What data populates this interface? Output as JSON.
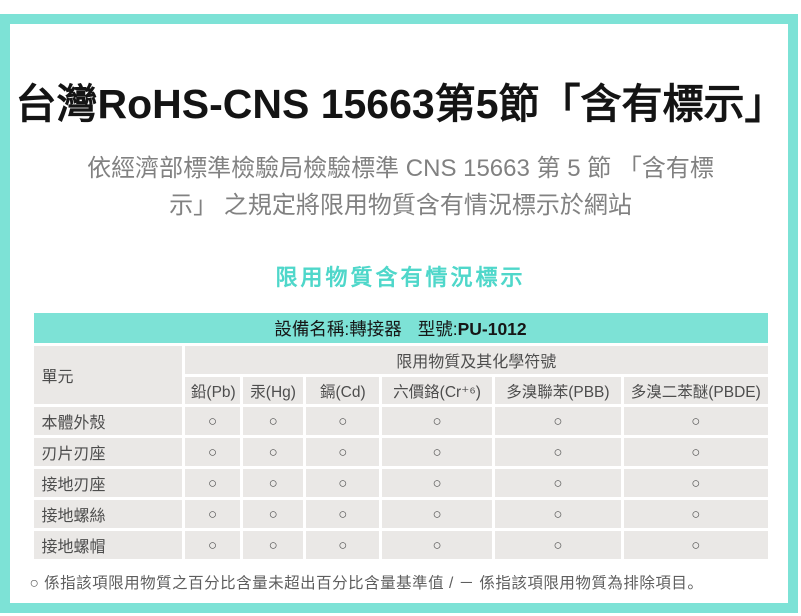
{
  "colors": {
    "accent": "#7de2d6",
    "accent_text": "#4fd7ca",
    "cell_bg": "#eae8e6"
  },
  "page": {
    "title": "台灣RoHS-CNS 15663第5節「含有標示」",
    "subtitle": "依經濟部標準檢驗局檢驗標準 CNS 15663 第 5 節 「含有標示」 之規定將限用物質含有情況標示於網站",
    "section_heading": "限用物質含有情況標示",
    "footnote": "○ 係指該項限用物質之百分比含量未超出百分比含量基準值 / － 係指該項限用物質為排除項目。"
  },
  "table": {
    "caption_device": "設備名稱:轉接器",
    "caption_model_label": "型號:",
    "caption_model_value": "PU-1012",
    "unit_header": "單元",
    "substances_header": "限用物質及其化學符號",
    "columns": [
      "鉛(Pb)",
      "汞(Hg)",
      "鎘(Cd)",
      "六價鉻(Cr⁺⁶)",
      "多溴聯苯(PBB)",
      "多溴二苯醚(PBDE)"
    ],
    "rows": [
      {
        "label": "本體外殼",
        "values": [
          "○",
          "○",
          "○",
          "○",
          "○",
          "○"
        ]
      },
      {
        "label": "刃片刃座",
        "values": [
          "○",
          "○",
          "○",
          "○",
          "○",
          "○"
        ]
      },
      {
        "label": "接地刃座",
        "values": [
          "○",
          "○",
          "○",
          "○",
          "○",
          "○"
        ]
      },
      {
        "label": "接地螺絲",
        "values": [
          "○",
          "○",
          "○",
          "○",
          "○",
          "○"
        ]
      },
      {
        "label": "接地螺帽",
        "values": [
          "○",
          "○",
          "○",
          "○",
          "○",
          "○"
        ]
      }
    ]
  }
}
